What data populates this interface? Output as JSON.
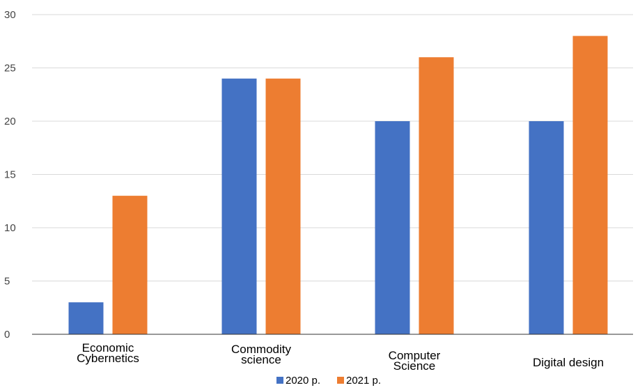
{
  "chart_data": {
    "type": "bar",
    "title": "",
    "xlabel": "",
    "ylabel": "",
    "ylim": [
      0,
      30
    ],
    "yticks": [
      0,
      5,
      10,
      15,
      20,
      25,
      30
    ],
    "categories": [
      [
        "Economic",
        "Cybernetics"
      ],
      [
        "Commodity",
        "science"
      ],
      [
        "Computer",
        "Science"
      ],
      [
        "Digital design"
      ]
    ],
    "series": [
      {
        "name": "2020 р.",
        "color": "#4472c4",
        "values": [
          3,
          24,
          20,
          20
        ]
      },
      {
        "name": "2021 р.",
        "color": "#ed7d31",
        "values": [
          13,
          24,
          26,
          28
        ]
      }
    ],
    "grid": true,
    "legend": "bottom"
  }
}
